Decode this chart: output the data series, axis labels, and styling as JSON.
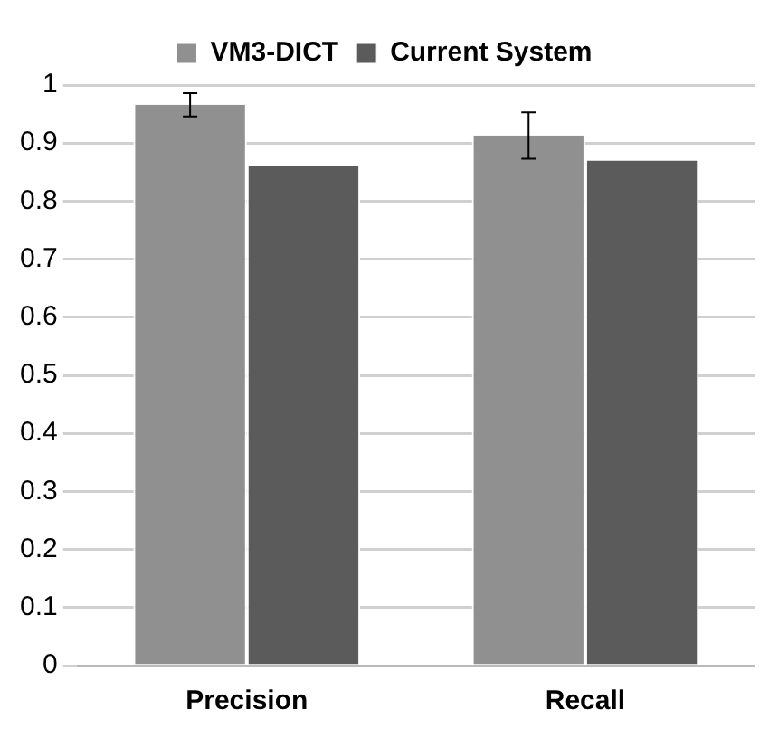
{
  "chart_data": {
    "type": "bar",
    "categories": [
      "Precision",
      "Recall"
    ],
    "series": [
      {
        "name": "VM3-DICT",
        "color": "#8f908f",
        "values": [
          0.966,
          0.913
        ],
        "errors": [
          0.02,
          0.04
        ]
      },
      {
        "name": "Current System",
        "color": "#5b5b5b",
        "values": [
          0.86,
          0.87
        ]
      }
    ],
    "ylim": [
      0,
      1
    ],
    "yticks": [
      0,
      0.1,
      0.2,
      0.3,
      0.4,
      0.5,
      0.6,
      0.7,
      0.8,
      0.9,
      1
    ],
    "grid": "y",
    "legend": "top"
  }
}
